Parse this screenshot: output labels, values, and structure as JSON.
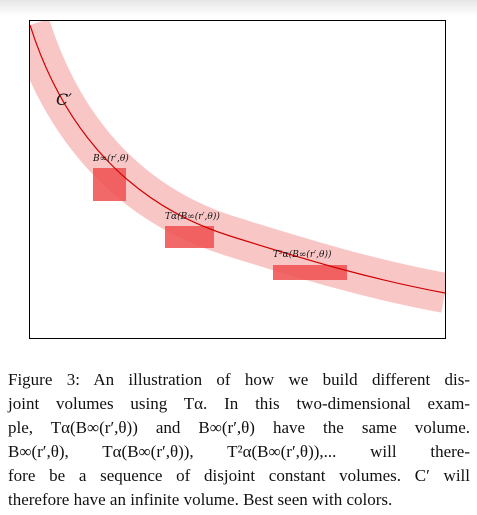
{
  "figure": {
    "labels": {
      "curve": "C′",
      "box1": "B∞(r′,θ)",
      "box2": "Tα(B∞(r′,θ))",
      "box3": "T²α(B∞(r′,θ))"
    },
    "colors": {
      "band": "#f9c6c6",
      "box": "#f04f4f",
      "curve": "#d00000"
    }
  },
  "caption": {
    "lines": [
      "Figure 3: An illustration of how we build different dis-",
      "joint volumes using Tα. In this two-dimensional exam-",
      "ple, Tα(B∞(r′,θ)) and B∞(r′,θ) have the same volume.",
      "B∞(r′,θ), Tα(B∞(r′,θ)), T²α(B∞(r′,θ)),... will there-",
      "fore be a sequence of disjoint constant volumes. C′ will",
      "therefore have an infinite volume. Best seen with colors."
    ]
  }
}
